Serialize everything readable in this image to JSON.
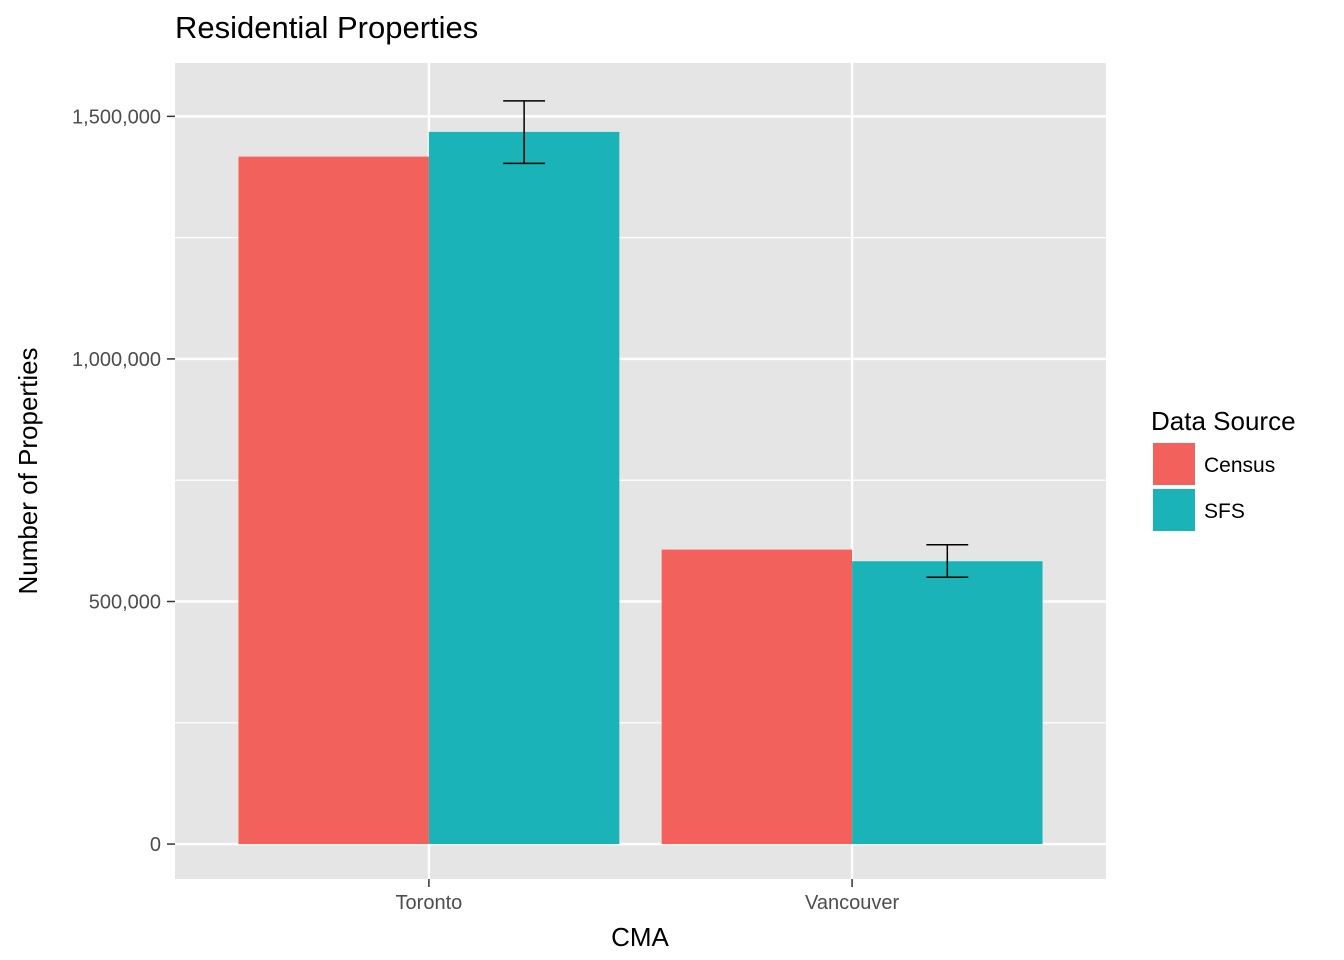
{
  "chart_data": {
    "type": "bar",
    "title": "Residential Properties",
    "xlabel": "CMA",
    "ylabel": "Number of Properties",
    "categories": [
      "Toronto",
      "Vancouver"
    ],
    "series": [
      {
        "name": "Census",
        "color": "#f3615c",
        "values": [
          1417000,
          607000
        ]
      },
      {
        "name": "SFS",
        "color": "#1ab3b7",
        "values": [
          1468000,
          583000
        ],
        "error_low": [
          1403000,
          550000
        ],
        "error_high": [
          1532000,
          617000
        ]
      }
    ],
    "ylim": [
      -72000,
      1610000
    ],
    "yticks": [
      0,
      500000,
      1000000,
      1500000
    ],
    "ytick_labels": [
      "0",
      "500,000",
      "1,000,000",
      "1,500,000"
    ],
    "y_minor_ticks": [
      250000,
      750000,
      1250000
    ],
    "grid": true,
    "panel_background": "#e5e5e5",
    "grid_color": "#ffffff",
    "legend": {
      "title": "Data Source",
      "position": "right",
      "entries": [
        "Census",
        "SFS"
      ]
    }
  }
}
